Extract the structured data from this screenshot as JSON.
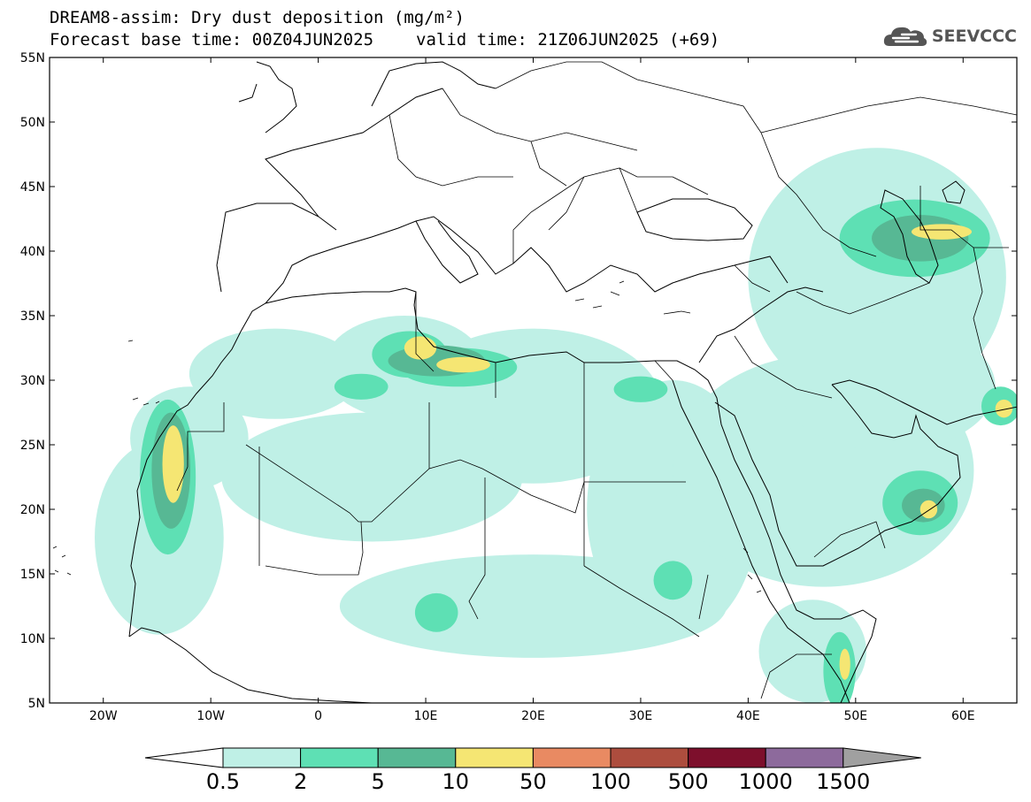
{
  "header": {
    "title": "DREAM8-assim: Dry dust deposition (mg/m²)",
    "base_time": "Forecast base time: 00Z04JUN2025",
    "valid_time": "valid time: 21Z06JUN2025 (+69)"
  },
  "logo": {
    "text": "SEEVCCC",
    "icon": "cloud-logo-icon",
    "color": "#555555"
  },
  "map": {
    "lon_range": [
      -25,
      65
    ],
    "lat_range": [
      5,
      55
    ],
    "lon_ticks": [
      {
        "value": -20,
        "label": "20W"
      },
      {
        "value": -10,
        "label": "10W"
      },
      {
        "value": 0,
        "label": "0"
      },
      {
        "value": 10,
        "label": "10E"
      },
      {
        "value": 20,
        "label": "20E"
      },
      {
        "value": 30,
        "label": "30E"
      },
      {
        "value": 40,
        "label": "40E"
      },
      {
        "value": 50,
        "label": "50E"
      },
      {
        "value": 60,
        "label": "60E"
      }
    ],
    "lat_ticks": [
      {
        "value": 55,
        "label": "55N"
      },
      {
        "value": 50,
        "label": "50N"
      },
      {
        "value": 45,
        "label": "45N"
      },
      {
        "value": 40,
        "label": "40N"
      },
      {
        "value": 35,
        "label": "35N"
      },
      {
        "value": 30,
        "label": "30N"
      },
      {
        "value": 25,
        "label": "25N"
      },
      {
        "value": 20,
        "label": "20N"
      },
      {
        "value": 15,
        "label": "15N"
      },
      {
        "value": 10,
        "label": "10N"
      },
      {
        "value": 5,
        "label": "5N"
      }
    ]
  },
  "colorbar": {
    "levels": [
      "0.5",
      "2",
      "5",
      "10",
      "50",
      "100",
      "500",
      "1000",
      "1500"
    ],
    "colors": [
      "#bff0e6",
      "#5ee0b4",
      "#57b894",
      "#f5e673",
      "#e98a62",
      "#ad4d3e",
      "#7d0f2c",
      "#8d6a9c"
    ],
    "under_color": "#ffffff",
    "over_color": "#a0a0a0"
  },
  "chart_data": {
    "type": "heatmap",
    "title": "DREAM8-assim: Dry dust deposition (mg/m²)",
    "levels": [
      0.5,
      2,
      5,
      10,
      50,
      100,
      500,
      1000,
      1500
    ],
    "xlim": [
      -25,
      65
    ],
    "ylim": [
      5,
      55
    ],
    "regions": [
      {
        "level": 0.5,
        "lon": -14.8,
        "lat": 17.8,
        "rx": 6.0,
        "ry": 7.5
      },
      {
        "level": 0.5,
        "lon": -12.0,
        "lat": 25.5,
        "rx": 5.5,
        "ry": 4.0
      },
      {
        "level": 0.5,
        "lon": -4.0,
        "lat": 30.5,
        "rx": 8.0,
        "ry": 3.5
      },
      {
        "level": 0.5,
        "lon": 8.0,
        "lat": 31.0,
        "rx": 7.5,
        "ry": 4.0
      },
      {
        "level": 0.5,
        "lon": 20.0,
        "lat": 28.0,
        "rx": 12.0,
        "ry": 6.0
      },
      {
        "level": 0.5,
        "lon": 5.0,
        "lat": 22.5,
        "rx": 14.0,
        "ry": 5.0
      },
      {
        "level": 0.5,
        "lon": 20.0,
        "lat": 12.5,
        "rx": 18.0,
        "ry": 4.0
      },
      {
        "level": 0.5,
        "lon": 33.0,
        "lat": 20.0,
        "rx": 8.0,
        "ry": 10.0
      },
      {
        "level": 0.5,
        "lon": 47.0,
        "lat": 23.0,
        "rx": 14.0,
        "ry": 9.0
      },
      {
        "level": 0.5,
        "lon": 52.0,
        "lat": 38.0,
        "rx": 12.0,
        "ry": 10.0
      },
      {
        "level": 0.5,
        "lon": 53.0,
        "lat": 29.5,
        "rx": 10.0,
        "ry": 5.0
      },
      {
        "level": 0.5,
        "lon": 46.0,
        "lat": 9.0,
        "rx": 5.0,
        "ry": 4.0
      },
      {
        "level": 2,
        "lon": -14.0,
        "lat": 22.5,
        "rx": 2.6,
        "ry": 6.0
      },
      {
        "level": 2,
        "lon": 8.5,
        "lat": 32.0,
        "rx": 3.5,
        "ry": 1.8
      },
      {
        "level": 2,
        "lon": 13.0,
        "lat": 31.0,
        "rx": 5.5,
        "ry": 1.5
      },
      {
        "level": 2,
        "lon": 4.0,
        "lat": 29.5,
        "rx": 2.5,
        "ry": 1.0
      },
      {
        "level": 2,
        "lon": 30.0,
        "lat": 29.3,
        "rx": 2.5,
        "ry": 1.0
      },
      {
        "level": 2,
        "lon": 33.0,
        "lat": 14.5,
        "rx": 1.8,
        "ry": 1.5
      },
      {
        "level": 2,
        "lon": 11.0,
        "lat": 12.0,
        "rx": 2.0,
        "ry": 1.5
      },
      {
        "level": 2,
        "lon": 56.0,
        "lat": 20.5,
        "rx": 3.5,
        "ry": 2.5
      },
      {
        "level": 2,
        "lon": 55.5,
        "lat": 41.0,
        "rx": 7.0,
        "ry": 3.0
      },
      {
        "level": 2,
        "lon": 63.5,
        "lat": 28.0,
        "rx": 1.8,
        "ry": 1.5
      },
      {
        "level": 2,
        "lon": 48.5,
        "lat": 7.5,
        "rx": 1.5,
        "ry": 3.0
      },
      {
        "level": 5,
        "lon": -13.7,
        "lat": 23.0,
        "rx": 1.8,
        "ry": 4.5
      },
      {
        "level": 5,
        "lon": 11.0,
        "lat": 31.5,
        "rx": 4.5,
        "ry": 1.2
      },
      {
        "level": 5,
        "lon": 56.0,
        "lat": 41.0,
        "rx": 4.5,
        "ry": 1.8
      },
      {
        "level": 5,
        "lon": 56.3,
        "lat": 20.3,
        "rx": 2.0,
        "ry": 1.3
      },
      {
        "level": 10,
        "lon": -13.5,
        "lat": 23.5,
        "rx": 1.0,
        "ry": 3.0
      },
      {
        "level": 10,
        "lon": 9.5,
        "lat": 32.5,
        "rx": 1.5,
        "ry": 0.9
      },
      {
        "level": 10,
        "lon": 13.5,
        "lat": 31.2,
        "rx": 2.5,
        "ry": 0.6
      },
      {
        "level": 10,
        "lon": 58.0,
        "lat": 41.5,
        "rx": 2.8,
        "ry": 0.6
      },
      {
        "level": 10,
        "lon": 56.8,
        "lat": 20.0,
        "rx": 0.8,
        "ry": 0.7
      },
      {
        "level": 10,
        "lon": 63.8,
        "lat": 27.8,
        "rx": 0.8,
        "ry": 0.7
      },
      {
        "level": 10,
        "lon": 49.0,
        "lat": 8.0,
        "rx": 0.5,
        "ry": 1.2
      }
    ]
  }
}
